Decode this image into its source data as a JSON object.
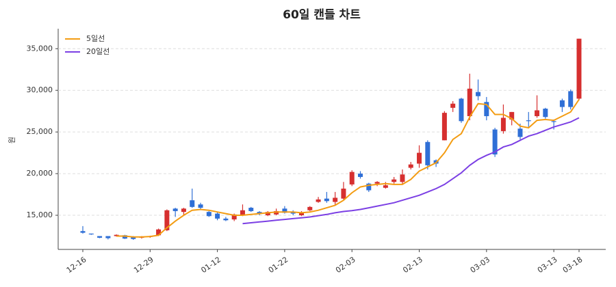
{
  "chart_data": {
    "type": "candlestick",
    "title": "60일 캔들 차트",
    "y_label": "원",
    "categories": [
      "12-16",
      null,
      null,
      null,
      null,
      null,
      null,
      null,
      "12-29",
      null,
      null,
      null,
      null,
      null,
      null,
      null,
      "01-12",
      null,
      null,
      null,
      null,
      null,
      null,
      null,
      "01-22",
      null,
      null,
      null,
      null,
      null,
      null,
      null,
      "02-03",
      null,
      null,
      null,
      null,
      null,
      null,
      null,
      "02-13",
      null,
      null,
      null,
      null,
      null,
      null,
      null,
      "03-03",
      null,
      null,
      null,
      null,
      null,
      null,
      null,
      "03-13",
      null,
      null,
      "03-18"
    ],
    "open": [
      13100,
      12800,
      12500,
      12500,
      12500,
      12600,
      12400,
      12300,
      12400,
      12600,
      13200,
      15800,
      15400,
      16800,
      16300,
      15400,
      15200,
      14600,
      14500,
      15000,
      15900,
      15400,
      15000,
      15100,
      15800,
      15400,
      15000,
      15600,
      16600,
      17000,
      16600,
      17000,
      18700,
      20000,
      18800,
      18800,
      18300,
      19000,
      19000,
      20700,
      21200,
      23800,
      21600,
      24000,
      27900,
      29000,
      26900,
      29800,
      28600,
      25300,
      25100,
      26500,
      25400,
      26400,
      26900,
      27800,
      26300,
      28800,
      29900,
      29000
    ],
    "high": [
      13700,
      12800,
      12500,
      12500,
      12700,
      12650,
      12500,
      12500,
      12550,
      13400,
      15700,
      15900,
      15900,
      18200,
      16500,
      15500,
      15400,
      14800,
      15200,
      16300,
      16000,
      15500,
      15500,
      15800,
      16100,
      15600,
      15500,
      16100,
      17200,
      17800,
      17800,
      19000,
      20400,
      20300,
      18900,
      19100,
      19000,
      19600,
      20500,
      21400,
      23400,
      24000,
      21700,
      27500,
      28700,
      29100,
      32000,
      31300,
      29200,
      25500,
      28300,
      27400,
      26000,
      27400,
      29400,
      27900,
      26500,
      29000,
      30100,
      36200
    ],
    "low": [
      12800,
      12650,
      12250,
      12100,
      12450,
      12150,
      12050,
      12200,
      12300,
      12500,
      13100,
      14800,
      15000,
      15900,
      15700,
      14800,
      14400,
      14300,
      14300,
      14900,
      15400,
      15000,
      14900,
      15000,
      15200,
      15000,
      14900,
      15500,
      16500,
      16500,
      16200,
      16900,
      18500,
      19400,
      17800,
      18500,
      18200,
      18800,
      18700,
      20500,
      20700,
      20500,
      20800,
      24000,
      27400,
      26100,
      26400,
      28800,
      26400,
      22000,
      24800,
      25800,
      24100,
      25600,
      26700,
      26600,
      25300,
      27400,
      27700,
      28800
    ],
    "close": [
      12900,
      12700,
      12300,
      12250,
      12650,
      12200,
      12150,
      12400,
      12500,
      13300,
      15600,
      15500,
      15800,
      16000,
      15900,
      14900,
      14600,
      14400,
      15100,
      15600,
      15500,
      15200,
      15400,
      15500,
      15300,
      15200,
      15300,
      16000,
      16900,
      16700,
      17100,
      18200,
      20200,
      19600,
      18000,
      19000,
      18600,
      19300,
      19900,
      21100,
      22500,
      21000,
      21200,
      27300,
      28400,
      26300,
      30200,
      29300,
      26900,
      22300,
      26700,
      27400,
      24400,
      26300,
      27600,
      26800,
      26200,
      28000,
      28000,
      36200
    ],
    "up_color": "#d62f2f",
    "down_color": "#2f6fd6",
    "series": [
      {
        "name": "5일선",
        "color": "#f39c12",
        "values": [
          null,
          null,
          null,
          null,
          12500,
          12500,
          12400,
          12400,
          12450,
          12600,
          13500,
          14300,
          15000,
          15600,
          15700,
          15600,
          15400,
          15200,
          15000,
          15000,
          15100,
          15200,
          15300,
          15400,
          15400,
          15400,
          15300,
          15400,
          15600,
          15900,
          16200,
          16800,
          17700,
          18400,
          18600,
          18700,
          18800,
          18700,
          18700,
          19300,
          20300,
          20800,
          21300,
          22500,
          24100,
          24800,
          26800,
          28400,
          28300,
          27100,
          27100,
          26600,
          25700,
          25500,
          26400,
          26500,
          26400,
          26900,
          27400,
          28900
        ]
      },
      {
        "name": "20일선",
        "color": "#7b3fe4",
        "values": [
          null,
          null,
          null,
          null,
          null,
          null,
          null,
          null,
          null,
          null,
          null,
          null,
          null,
          null,
          null,
          null,
          null,
          null,
          null,
          14000,
          14100,
          14200,
          14300,
          14400,
          14500,
          14600,
          14700,
          14800,
          14950,
          15100,
          15300,
          15450,
          15550,
          15700,
          15900,
          16100,
          16300,
          16500,
          16800,
          17100,
          17400,
          17800,
          18200,
          18700,
          19400,
          20100,
          21000,
          21700,
          22200,
          22600,
          23200,
          23500,
          24000,
          24500,
          24800,
          25200,
          25600,
          25900,
          26200,
          26700
        ]
      }
    ],
    "ylim": [
      10900,
      37400
    ],
    "yticks": [
      {
        "value": 15000,
        "label": "15,000"
      },
      {
        "value": 20000,
        "label": "20,000"
      },
      {
        "value": 25000,
        "label": "25,000"
      },
      {
        "value": 30000,
        "label": "30,000"
      },
      {
        "value": 35000,
        "label": "35,000"
      }
    ],
    "grid": true,
    "legend": "upper-left"
  }
}
